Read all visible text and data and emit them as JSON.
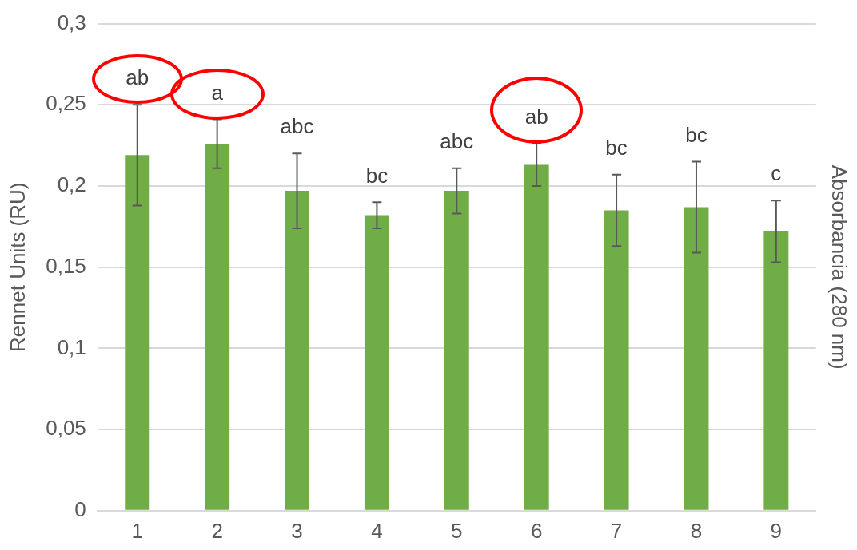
{
  "chart_data": {
    "type": "bar",
    "ylabel": "Rennet Units (RU)",
    "y2label": "Absorbancia (280 nm)",
    "categories": [
      "1",
      "2",
      "3",
      "4",
      "5",
      "6",
      "7",
      "8",
      "9"
    ],
    "values": [
      0.219,
      0.226,
      0.197,
      0.182,
      0.197,
      0.213,
      0.185,
      0.187,
      0.172
    ],
    "errors": [
      0.031,
      0.015,
      0.023,
      0.008,
      0.014,
      0.013,
      0.022,
      0.028,
      0.019
    ],
    "color": "#70ad47",
    "ylim": [
      0,
      0.3
    ],
    "yticks": [
      0,
      {
        "value": 0.05,
        "label": "0,05"
      },
      {
        "value": 0.1,
        "label": "0,1"
      },
      {
        "value": 0.15,
        "label": "0,15"
      },
      {
        "value": 0.2,
        "label": "0,2"
      },
      {
        "value": 0.25,
        "label": "0,25"
      },
      {
        "value": 0.3,
        "label": "0,3"
      }
    ],
    "grid": "y",
    "legend": false,
    "annotations": [
      "ab",
      "a",
      "abc",
      "bc",
      "abc",
      "ab",
      "bc",
      "bc",
      "c"
    ]
  }
}
